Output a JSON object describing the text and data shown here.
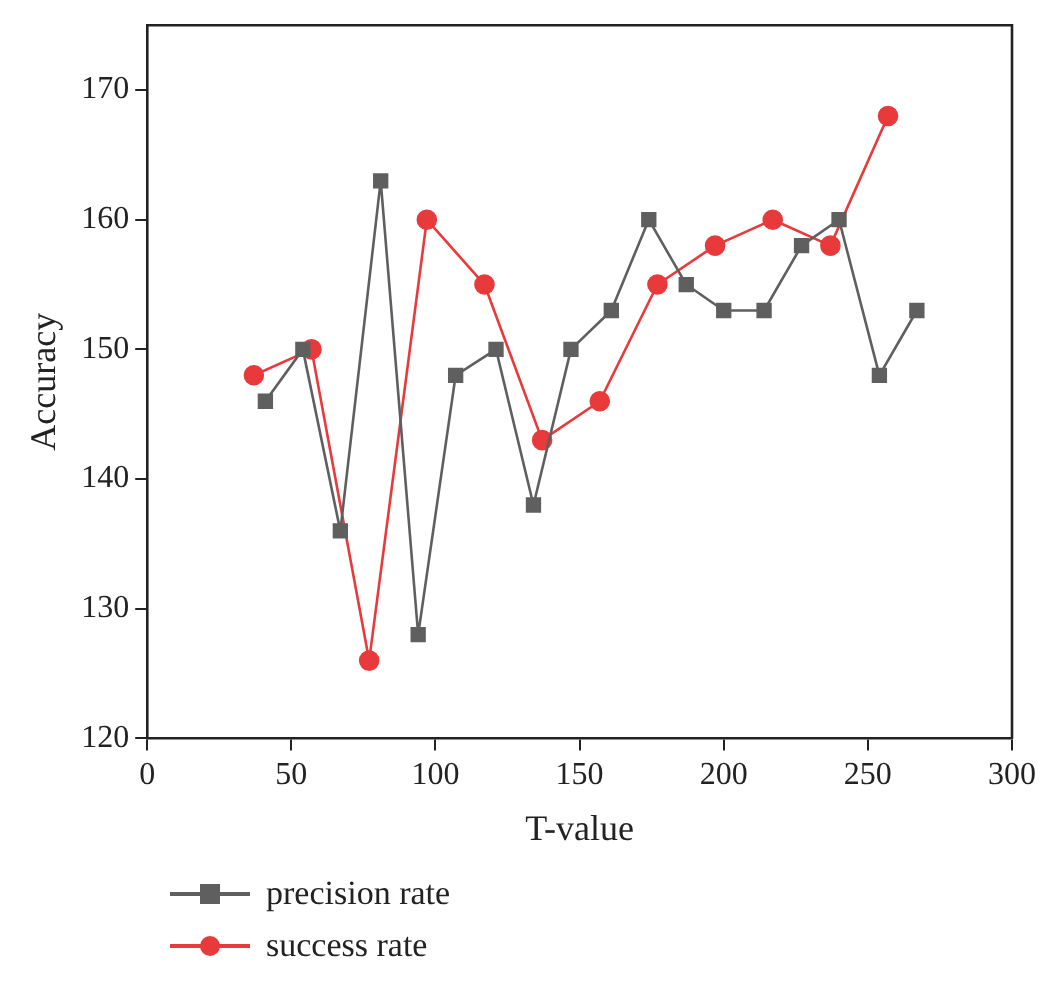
{
  "chart_data": {
    "type": "line",
    "xlabel": "T-value",
    "ylabel": "Accuracy",
    "xlim": [
      0,
      300
    ],
    "xticks": [
      0,
      50,
      100,
      150,
      200,
      250,
      300
    ],
    "ylim": [
      120,
      175
    ],
    "yticks": [
      120,
      130,
      140,
      150,
      160,
      170
    ],
    "grid": false,
    "legend": "bottom left",
    "line_style": "solid",
    "series": [
      {
        "name": "precision rate",
        "color": "#5f5f5f",
        "marker": "square",
        "x": [
          41,
          54,
          67,
          81,
          94,
          107,
          121,
          134,
          147,
          161,
          174,
          187,
          200,
          214,
          227,
          240,
          254,
          267
        ],
        "values": [
          146,
          150,
          136,
          163,
          128,
          148,
          150,
          138,
          150,
          153,
          160,
          155,
          153,
          153,
          158,
          160,
          148,
          153
        ]
      },
      {
        "name": "success rate",
        "color": "#e8393b",
        "marker": "circle",
        "x": [
          37,
          57,
          77,
          97,
          117,
          137,
          157,
          177,
          197,
          217,
          237,
          257
        ],
        "values": [
          148,
          150,
          126,
          160,
          155,
          143,
          146,
          155,
          158,
          160,
          158,
          168
        ]
      }
    ]
  }
}
